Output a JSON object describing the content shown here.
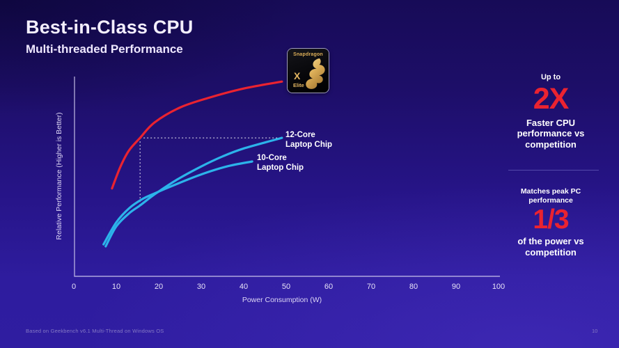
{
  "slide": {
    "title": "Best-in-Class CPU",
    "subtitle": "Multi-threaded Performance",
    "footer": "Based on Geekbench v6.1 Multi-Thread on Windows OS",
    "page_number": "10"
  },
  "badge": {
    "brand": "Snapdragon",
    "model": "X",
    "tier": "Elite"
  },
  "right_panel": {
    "stat1": {
      "prefix": "Up to",
      "value": "2X",
      "description": "Faster CPU performance vs competition"
    },
    "stat2": {
      "prefix": "Matches peak PC performance",
      "value": "1/3",
      "description": "of the power vs competition"
    }
  },
  "colors": {
    "accent_red": "#ea2330",
    "accent_cyan": "#2cb3ea",
    "gold": "#dcae58",
    "axis": "#cfc9ee",
    "dashed": "#ffffff"
  },
  "chart_data": {
    "type": "line",
    "title": "",
    "xlabel": "Power Consumption (W)",
    "ylabel": "Relative Performance (Higher is Better)",
    "xlim": [
      0,
      100
    ],
    "x_ticks": [
      0,
      10,
      20,
      30,
      40,
      50,
      60,
      70,
      80,
      90,
      100
    ],
    "ylim": [
      0,
      100
    ],
    "y_ticks": [],
    "grid": false,
    "legend_position": "inline-labels",
    "series": [
      {
        "name": "Snapdragon X Elite",
        "color": "#ea2330",
        "points": [
          [
            9,
            44
          ],
          [
            11,
            55
          ],
          [
            13,
            63
          ],
          [
            15.6,
            69.3
          ],
          [
            19,
            77
          ],
          [
            25,
            84.5
          ],
          [
            32,
            89.5
          ],
          [
            40,
            94
          ],
          [
            49,
            97.5
          ]
        ]
      },
      {
        "name": "12-Core Laptop Chip",
        "color": "#2cb3ea",
        "points": [
          [
            7.5,
            15
          ],
          [
            10,
            25
          ],
          [
            13,
            31.5
          ],
          [
            15.6,
            35.5
          ],
          [
            19,
            41
          ],
          [
            24,
            48
          ],
          [
            30,
            55
          ],
          [
            35,
            60
          ],
          [
            40,
            64
          ],
          [
            49,
            69.3
          ]
        ]
      },
      {
        "name": "10-Core Laptop Chip",
        "color": "#2cb3ea",
        "points": [
          [
            7,
            16
          ],
          [
            10,
            27
          ],
          [
            13,
            34
          ],
          [
            16,
            38.5
          ],
          [
            19,
            41.5
          ],
          [
            24,
            46
          ],
          [
            30,
            51
          ],
          [
            36,
            55
          ],
          [
            42,
            57.5
          ]
        ]
      }
    ],
    "annotations": {
      "dashed_h": {
        "from": [
          15.6,
          69.3
        ],
        "to": [
          49,
          69.3
        ]
      },
      "dashed_v": {
        "from": [
          15.6,
          69.3
        ],
        "to": [
          15.6,
          35.5
        ]
      }
    }
  }
}
